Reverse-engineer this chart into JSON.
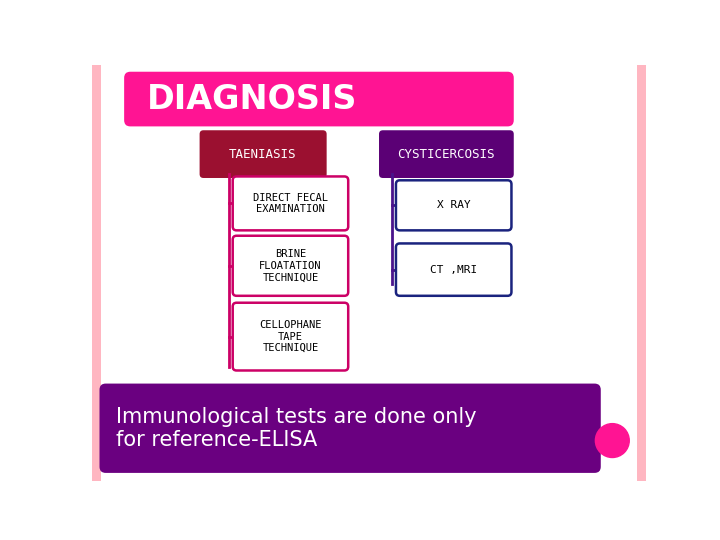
{
  "background_color": "#FFFFFF",
  "outer_border_color": "#FFB6C1",
  "title": "DIAGNOSIS",
  "title_bg": "#FF1493",
  "title_text_color": "#FFFFFF",
  "taeniasis_bg_left": "#CC0044",
  "taeniasis_bg_right": "#8B0030",
  "taeniasis_text": "TAENIASIS",
  "taeniasis_text_color": "#FFFFFF",
  "cysticercosis_bg_left": "#7B0099",
  "cysticercosis_bg_right": "#4B0070",
  "cysticercosis_text": "CYSTICERCOSIS",
  "cysticercosis_text_color": "#FFFFFF",
  "left_boxes": [
    {
      "text": "DIRECT FECAL\nEXAMINATION"
    },
    {
      "text": "BRINE\nFLOATATION\nTECHNIQUE"
    },
    {
      "text": "CELLOPHANE\nTAPE\nTECHNIQUE"
    }
  ],
  "right_boxes": [
    {
      "text": "X RAY"
    },
    {
      "text": "CT ,MRI"
    }
  ],
  "left_box_border": "#CC0066",
  "right_box_border": "#1A237E",
  "connector_color_left": "#CC0066",
  "connector_color_right": "#4A148C",
  "footer_bg": "#6A0080",
  "footer_text": "Immunological tests are done only\nfor reference-ELISA",
  "footer_text_color": "#FFFFFF",
  "circle_color": "#FF1493"
}
